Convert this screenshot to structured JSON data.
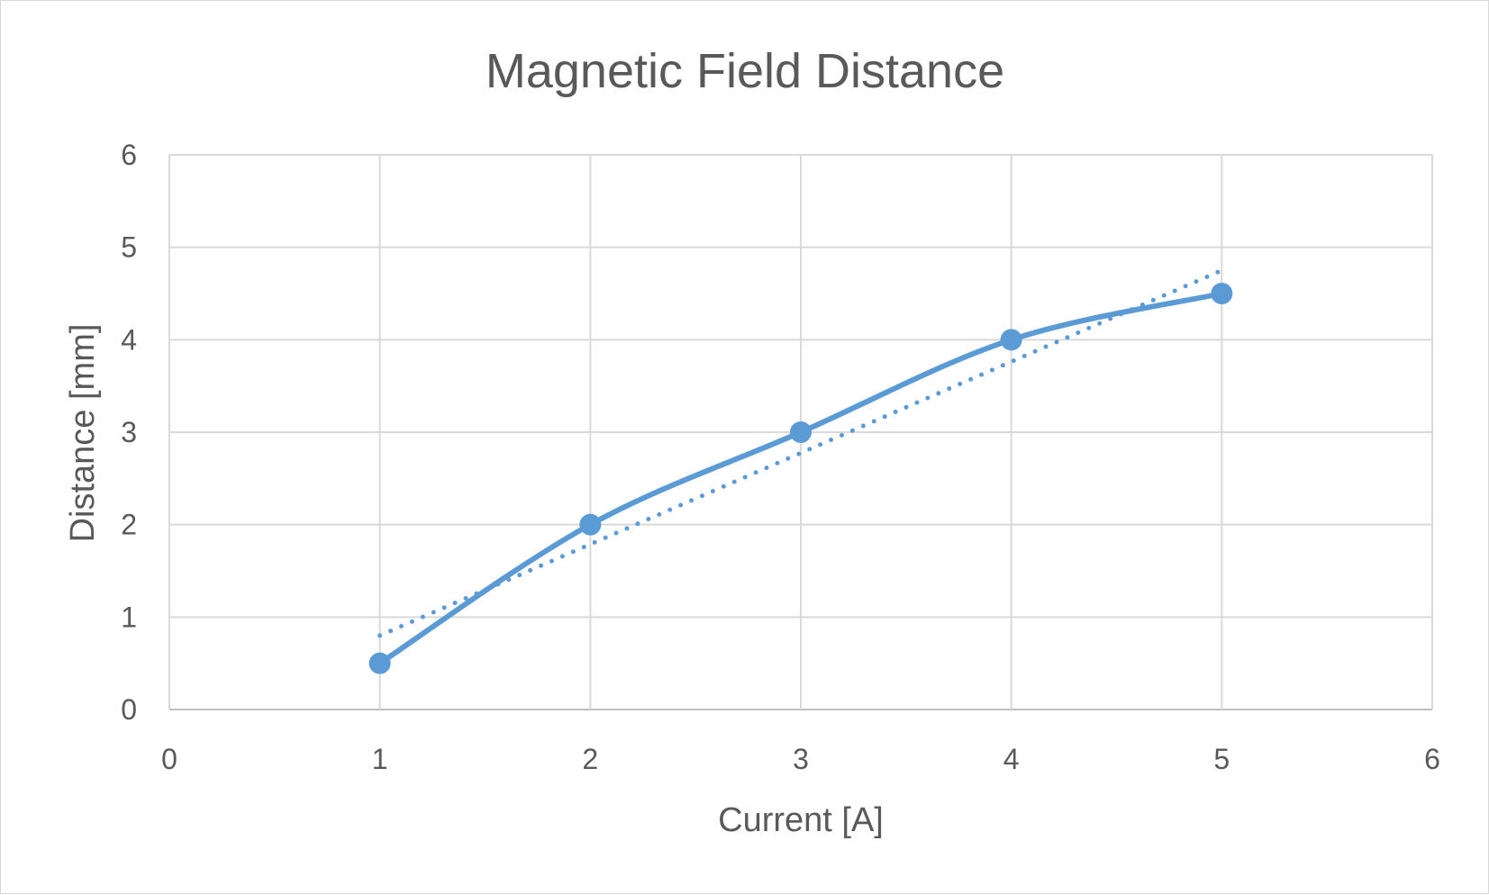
{
  "chart_data": {
    "type": "scatter",
    "title": "Magnetic Field Distance",
    "xlabel": "Current [A]",
    "ylabel": "Distance [mm]",
    "xlim": [
      0,
      6
    ],
    "ylim": [
      0,
      6
    ],
    "x_ticks": [
      "0",
      "1",
      "2",
      "3",
      "4",
      "5",
      "6"
    ],
    "y_ticks": [
      "0",
      "1",
      "2",
      "3",
      "4",
      "5",
      "6"
    ],
    "grid": true,
    "legend": "none",
    "series": [
      {
        "x": [
          1,
          2,
          3,
          4,
          5
        ],
        "values": [
          0.5,
          2,
          3,
          4,
          4.5
        ],
        "color": "#5B9BD5",
        "line": "smooth",
        "markers": true
      }
    ],
    "trendline": {
      "type": "linear",
      "style": "dotted",
      "color": "#5B9BD5",
      "x": [
        1,
        5
      ],
      "values": [
        0.8,
        4.75
      ]
    }
  }
}
